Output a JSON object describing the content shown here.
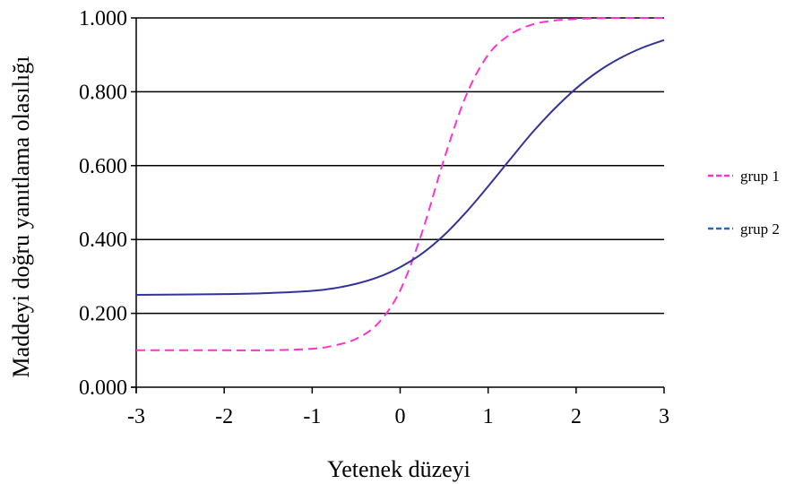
{
  "chart_data": {
    "type": "line",
    "title": "",
    "xlabel": "Yetenek düzeyi",
    "ylabel": "Maddeyi doğru yanıtlama olasılığı",
    "xlim": [
      -3,
      3
    ],
    "ylim": [
      0,
      1
    ],
    "x_ticks": [
      "-3",
      "-2",
      "-1",
      "0",
      "1",
      "2",
      "3"
    ],
    "y_ticks": [
      "0.000",
      "0.200",
      "0.400",
      "0.600",
      "0.800",
      "1.000"
    ],
    "grid": "horizontal",
    "legend_position": "right",
    "x": [
      -3,
      -2.5,
      -2,
      -1.5,
      -1,
      -0.75,
      -0.5,
      -0.25,
      0,
      0.25,
      0.5,
      0.75,
      1,
      1.25,
      1.5,
      1.75,
      2,
      2.25,
      2.5,
      2.75,
      3
    ],
    "series": [
      {
        "name": "grup 1",
        "color": "#ff33cc",
        "style": "dashed",
        "values": [
          0.1,
          0.1,
          0.1,
          0.1,
          0.104,
          0.113,
          0.131,
          0.173,
          0.262,
          0.42,
          0.618,
          0.79,
          0.9,
          0.955,
          0.982,
          0.993,
          0.997,
          0.999,
          1.0,
          1.0,
          1.0
        ]
      },
      {
        "name": "grup 2",
        "color": "#333399",
        "legend_color": "#1f6fbf",
        "style": "solid",
        "values": [
          0.25,
          0.251,
          0.252,
          0.255,
          0.261,
          0.268,
          0.28,
          0.298,
          0.325,
          0.362,
          0.412,
          0.474,
          0.544,
          0.617,
          0.689,
          0.753,
          0.809,
          0.855,
          0.891,
          0.919,
          0.94
        ]
      }
    ]
  }
}
